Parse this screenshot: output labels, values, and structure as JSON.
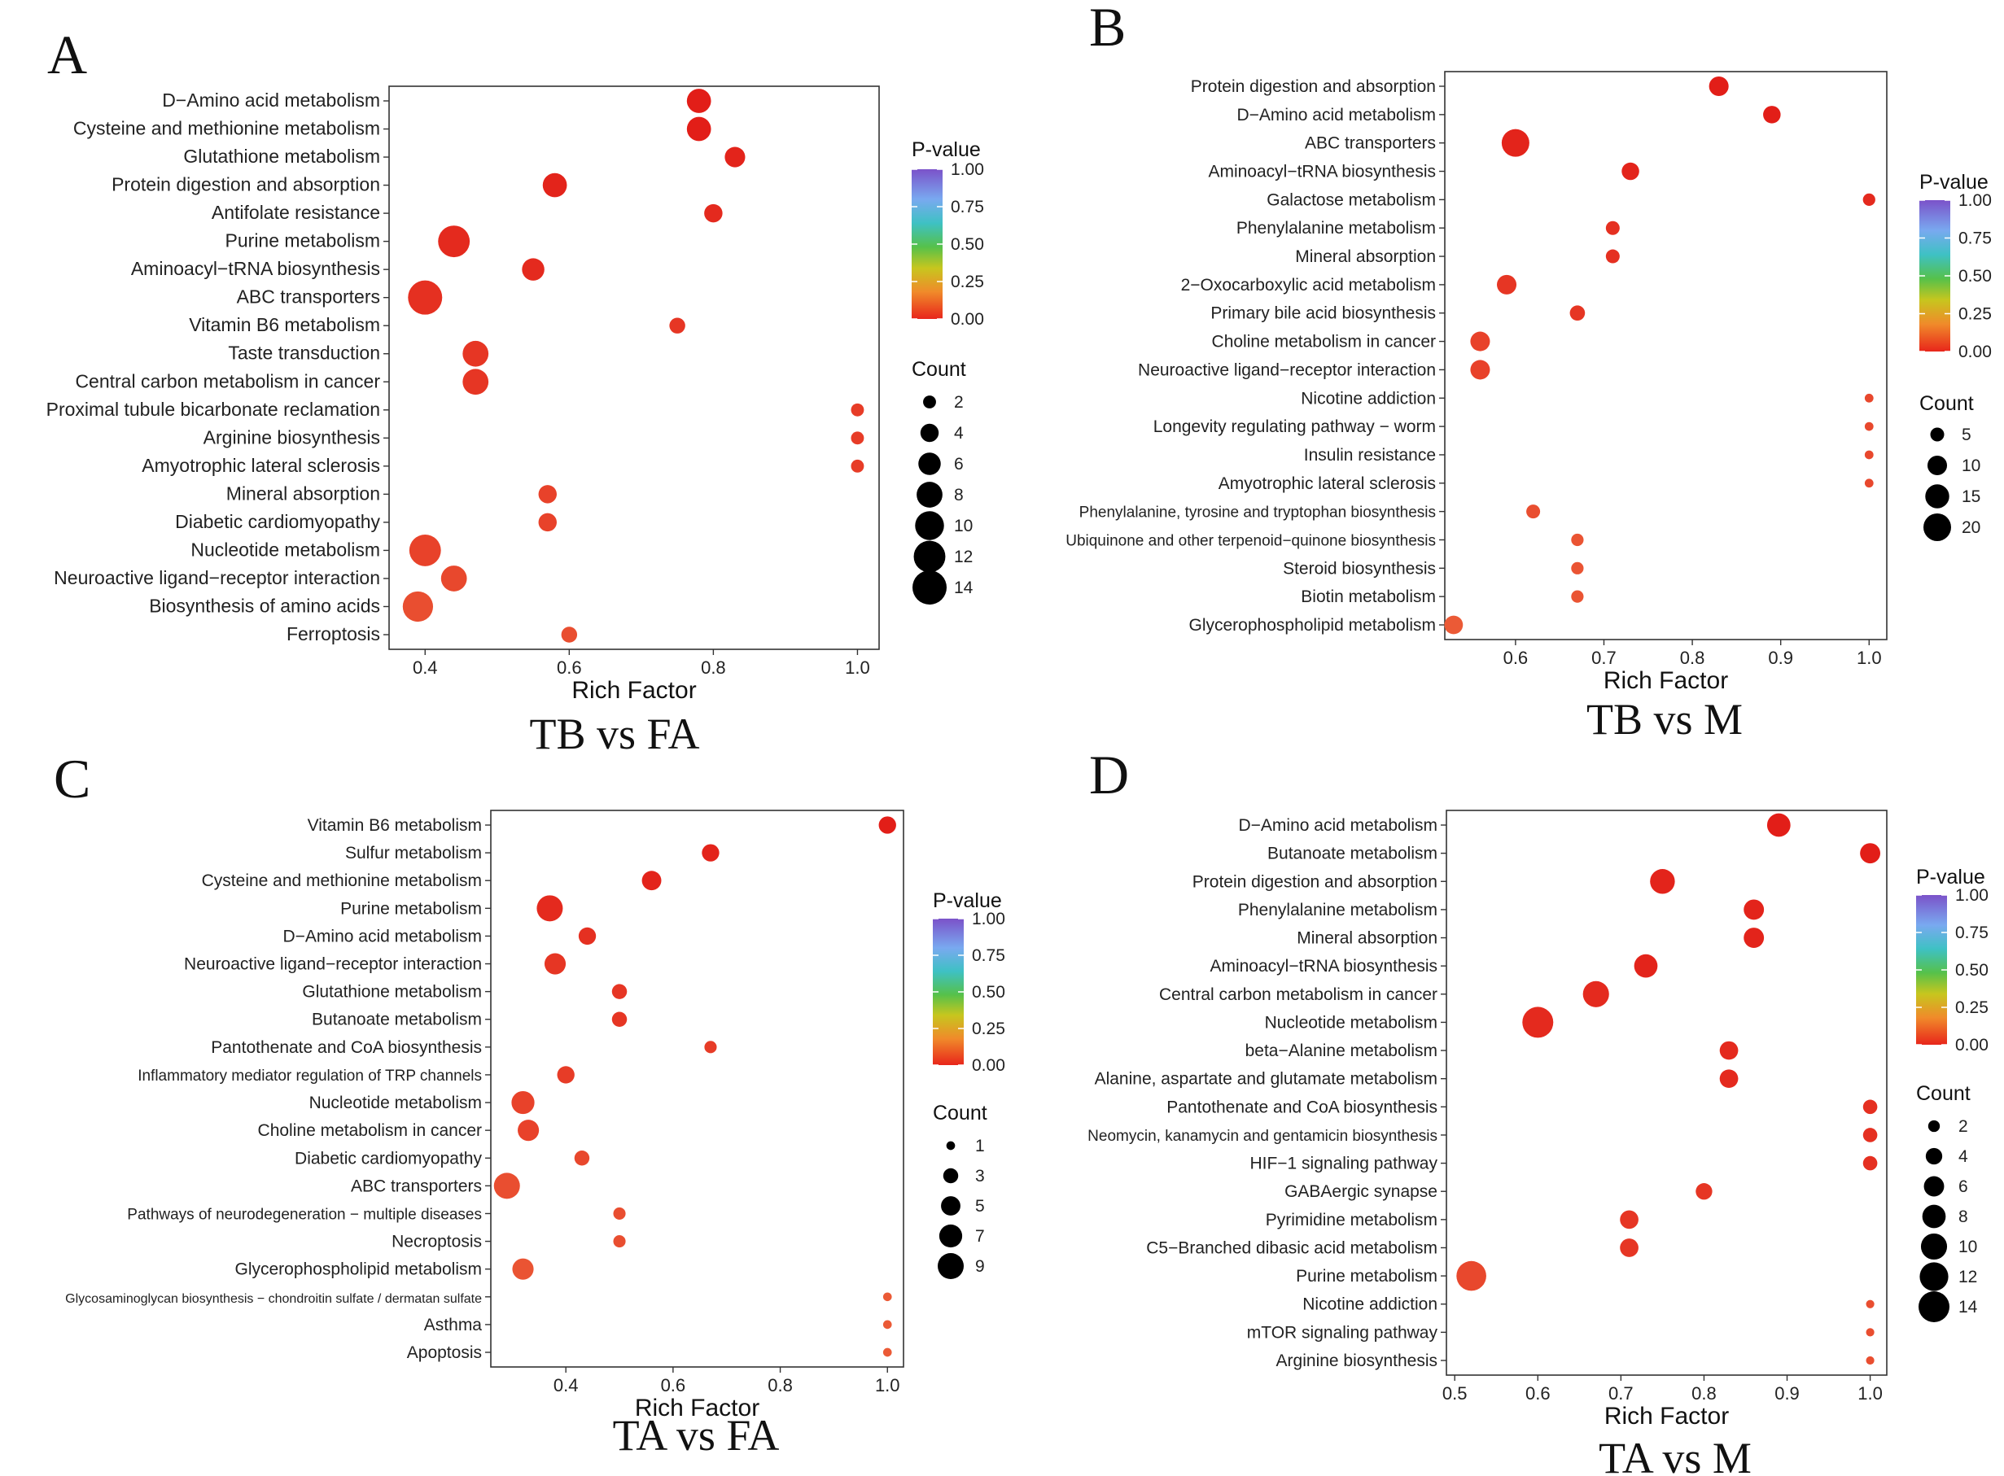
{
  "chart_data": [
    {
      "panel": "A",
      "type": "scatter",
      "subtitle": "TB vs FA",
      "xlabel": "Rich Factor",
      "xlim": [
        0.35,
        1.03
      ],
      "xticks": [
        0.4,
        0.6,
        0.8,
        1.0
      ],
      "xtick_labels": [
        "0.4",
        "0.6",
        "0.8",
        "1.0"
      ],
      "legend": {
        "color_title": "P-value",
        "color_ticks": [
          "1.00",
          "0.75",
          "0.50",
          "0.25",
          "0.00"
        ],
        "size_title": "Count",
        "size_values": [
          2,
          4,
          6,
          8,
          10,
          12,
          14
        ],
        "size_labels": [
          "2",
          "4",
          "6",
          "8",
          "10",
          "12",
          "14"
        ]
      },
      "terms": [
        {
          "name": "D−Amino acid metabolism",
          "rich_factor": 0.78,
          "count": 7,
          "p_value": 0.0
        },
        {
          "name": "Cysteine and methionine metabolism",
          "rich_factor": 0.78,
          "count": 7,
          "p_value": 0.0
        },
        {
          "name": "Glutathione metabolism",
          "rich_factor": 0.83,
          "count": 5,
          "p_value": 0.01
        },
        {
          "name": "Protein digestion and absorption",
          "rich_factor": 0.58,
          "count": 7,
          "p_value": 0.01
        },
        {
          "name": "Antifolate resistance",
          "rich_factor": 0.8,
          "count": 4,
          "p_value": 0.02
        },
        {
          "name": "Purine metabolism",
          "rich_factor": 0.44,
          "count": 12,
          "p_value": 0.02
        },
        {
          "name": "Aminoacyl−tRNA biosynthesis",
          "rich_factor": 0.55,
          "count": 6,
          "p_value": 0.02
        },
        {
          "name": "ABC transporters",
          "rich_factor": 0.4,
          "count": 14,
          "p_value": 0.03
        },
        {
          "name": "Vitamin B6 metabolism",
          "rich_factor": 0.75,
          "count": 3,
          "p_value": 0.04
        },
        {
          "name": "Taste transduction",
          "rich_factor": 0.47,
          "count": 8,
          "p_value": 0.04
        },
        {
          "name": "Central carbon metabolism in cancer",
          "rich_factor": 0.47,
          "count": 8,
          "p_value": 0.04
        },
        {
          "name": "Proximal tubule bicarbonate reclamation",
          "rich_factor": 1.0,
          "count": 2,
          "p_value": 0.05
        },
        {
          "name": "Arginine biosynthesis",
          "rich_factor": 1.0,
          "count": 2,
          "p_value": 0.05
        },
        {
          "name": "Amyotrophic lateral sclerosis",
          "rich_factor": 1.0,
          "count": 2,
          "p_value": 0.05
        },
        {
          "name": "Mineral absorption",
          "rich_factor": 0.57,
          "count": 4,
          "p_value": 0.06
        },
        {
          "name": "Diabetic cardiomyopathy",
          "rich_factor": 0.57,
          "count": 4,
          "p_value": 0.06
        },
        {
          "name": "Nucleotide metabolism",
          "rich_factor": 0.4,
          "count": 12,
          "p_value": 0.06
        },
        {
          "name": "Neuroactive ligand−receptor interaction",
          "rich_factor": 0.44,
          "count": 8,
          "p_value": 0.07
        },
        {
          "name": "Biosynthesis of amino acids",
          "rich_factor": 0.39,
          "count": 11,
          "p_value": 0.08
        },
        {
          "name": "Ferroptosis",
          "rich_factor": 0.6,
          "count": 3,
          "p_value": 0.08
        }
      ]
    },
    {
      "panel": "B",
      "type": "scatter",
      "subtitle": "TB vs M",
      "xlabel": "Rich Factor",
      "xlim": [
        0.52,
        1.02
      ],
      "xticks": [
        0.6,
        0.7,
        0.8,
        0.9,
        1.0
      ],
      "xtick_labels": [
        "0.6",
        "0.7",
        "0.8",
        "0.9",
        "1.0"
      ],
      "legend": {
        "color_title": "P-value",
        "color_ticks": [
          "1.00",
          "0.75",
          "0.50",
          "0.25",
          "0.00"
        ],
        "size_title": "Count",
        "size_values": [
          5,
          10,
          15,
          20
        ],
        "size_labels": [
          "5",
          "10",
          "15",
          "20"
        ]
      },
      "terms": [
        {
          "name": "Protein digestion and absorption",
          "rich_factor": 0.83,
          "count": 10,
          "p_value": 0.0
        },
        {
          "name": "D−Amino acid metabolism",
          "rich_factor": 0.89,
          "count": 8,
          "p_value": 0.0
        },
        {
          "name": "ABC transporters",
          "rich_factor": 0.6,
          "count": 20,
          "p_value": 0.01
        },
        {
          "name": "Aminoacyl−tRNA biosynthesis",
          "rich_factor": 0.73,
          "count": 8,
          "p_value": 0.01
        },
        {
          "name": "Galactose metabolism",
          "rich_factor": 1.0,
          "count": 4,
          "p_value": 0.02
        },
        {
          "name": "Phenylalanine metabolism",
          "rich_factor": 0.71,
          "count": 5,
          "p_value": 0.03
        },
        {
          "name": "Mineral absorption",
          "rich_factor": 0.71,
          "count": 5,
          "p_value": 0.03
        },
        {
          "name": "2−Oxocarboxylic acid metabolism",
          "rich_factor": 0.59,
          "count": 10,
          "p_value": 0.04
        },
        {
          "name": "Primary bile acid biosynthesis",
          "rich_factor": 0.67,
          "count": 6,
          "p_value": 0.04
        },
        {
          "name": "Choline metabolism in cancer",
          "rich_factor": 0.56,
          "count": 10,
          "p_value": 0.06
        },
        {
          "name": "Neuroactive ligand−receptor interaction",
          "rich_factor": 0.56,
          "count": 10,
          "p_value": 0.06
        },
        {
          "name": "Nicotine addiction",
          "rich_factor": 1.0,
          "count": 2,
          "p_value": 0.07
        },
        {
          "name": "Longevity regulating pathway − worm",
          "rich_factor": 1.0,
          "count": 2,
          "p_value": 0.07
        },
        {
          "name": "Insulin resistance",
          "rich_factor": 1.0,
          "count": 2,
          "p_value": 0.07
        },
        {
          "name": "Amyotrophic lateral sclerosis",
          "rich_factor": 1.0,
          "count": 2,
          "p_value": 0.07
        },
        {
          "name": "Phenylalanine, tyrosine and tryptophan biosynthesis",
          "rich_factor": 0.62,
          "count": 5,
          "p_value": 0.08
        },
        {
          "name": "Ubiquinone and other terpenoid−quinone biosynthesis",
          "rich_factor": 0.67,
          "count": 4,
          "p_value": 0.09
        },
        {
          "name": "Steroid biosynthesis",
          "rich_factor": 0.67,
          "count": 4,
          "p_value": 0.09
        },
        {
          "name": "Biotin metabolism",
          "rich_factor": 0.67,
          "count": 4,
          "p_value": 0.09
        },
        {
          "name": "Glycerophospholipid metabolism",
          "rich_factor": 0.53,
          "count": 9,
          "p_value": 0.1
        }
      ]
    },
    {
      "panel": "C",
      "type": "scatter",
      "subtitle": "TA vs FA",
      "xlabel": "Rich Factor",
      "xlim": [
        0.26,
        1.03
      ],
      "xticks": [
        0.4,
        0.6,
        0.8,
        1.0
      ],
      "xtick_labels": [
        "0.4",
        "0.6",
        "0.8",
        "1.0"
      ],
      "legend": {
        "color_title": "P-value",
        "color_ticks": [
          "1.00",
          "0.75",
          "0.50",
          "0.25",
          "0.00"
        ],
        "size_title": "Count",
        "size_values": [
          1,
          3,
          5,
          7,
          9
        ],
        "size_labels": [
          "1",
          "3",
          "5",
          "7",
          "9"
        ]
      },
      "terms": [
        {
          "name": "Vitamin B6 metabolism",
          "rich_factor": 1.0,
          "count": 4,
          "p_value": 0.0
        },
        {
          "name": "Sulfur metabolism",
          "rich_factor": 0.67,
          "count": 4,
          "p_value": 0.01
        },
        {
          "name": "Cysteine and methionine metabolism",
          "rich_factor": 0.56,
          "count": 5,
          "p_value": 0.01
        },
        {
          "name": "Purine metabolism",
          "rich_factor": 0.37,
          "count": 9,
          "p_value": 0.02
        },
        {
          "name": "D−Amino acid metabolism",
          "rich_factor": 0.44,
          "count": 4,
          "p_value": 0.03
        },
        {
          "name": "Neuroactive ligand−receptor interaction",
          "rich_factor": 0.38,
          "count": 6,
          "p_value": 0.04
        },
        {
          "name": "Glutathione metabolism",
          "rich_factor": 0.5,
          "count": 3,
          "p_value": 0.04
        },
        {
          "name": "Butanoate metabolism",
          "rich_factor": 0.5,
          "count": 3,
          "p_value": 0.04
        },
        {
          "name": "Pantothenate and CoA biosynthesis",
          "rich_factor": 0.67,
          "count": 2,
          "p_value": 0.05
        },
        {
          "name": "Inflammatory mediator regulation of TRP channels",
          "rich_factor": 0.4,
          "count": 4,
          "p_value": 0.05
        },
        {
          "name": "Nucleotide metabolism",
          "rich_factor": 0.32,
          "count": 7,
          "p_value": 0.06
        },
        {
          "name": "Choline metabolism in cancer",
          "rich_factor": 0.33,
          "count": 6,
          "p_value": 0.06
        },
        {
          "name": "Diabetic cardiomyopathy",
          "rich_factor": 0.43,
          "count": 3,
          "p_value": 0.07
        },
        {
          "name": "ABC transporters",
          "rich_factor": 0.29,
          "count": 9,
          "p_value": 0.08
        },
        {
          "name": "Pathways of neurodegeneration − multiple diseases",
          "rich_factor": 0.5,
          "count": 2,
          "p_value": 0.08
        },
        {
          "name": "Necroptosis",
          "rich_factor": 0.5,
          "count": 2,
          "p_value": 0.08
        },
        {
          "name": "Glycerophospholipid metabolism",
          "rich_factor": 0.32,
          "count": 6,
          "p_value": 0.09
        },
        {
          "name": "Glycosaminoglycan biosynthesis − chondroitin sulfate / dermatan sulfate",
          "rich_factor": 1.0,
          "count": 1,
          "p_value": 0.1
        },
        {
          "name": "Asthma",
          "rich_factor": 1.0,
          "count": 1,
          "p_value": 0.1
        },
        {
          "name": "Apoptosis",
          "rich_factor": 1.0,
          "count": 1,
          "p_value": 0.1
        }
      ]
    },
    {
      "panel": "D",
      "type": "scatter",
      "subtitle": "TA vs M",
      "xlabel": "Rich Factor",
      "xlim": [
        0.49,
        1.02
      ],
      "xticks": [
        0.5,
        0.6,
        0.7,
        0.8,
        0.9,
        1.0
      ],
      "xtick_labels": [
        "0.5",
        "0.6",
        "0.7",
        "0.8",
        "0.9",
        "1.0"
      ],
      "legend": {
        "color_title": "P-value",
        "color_ticks": [
          "1.00",
          "0.75",
          "0.50",
          "0.25",
          "0.00"
        ],
        "size_title": "Count",
        "size_values": [
          2,
          4,
          6,
          8,
          10,
          12,
          14
        ],
        "size_labels": [
          "2",
          "4",
          "6",
          "8",
          "10",
          "12",
          "14"
        ]
      },
      "terms": [
        {
          "name": "D−Amino acid metabolism",
          "rich_factor": 0.89,
          "count": 8,
          "p_value": 0.0
        },
        {
          "name": "Butanoate metabolism",
          "rich_factor": 1.0,
          "count": 6,
          "p_value": 0.0
        },
        {
          "name": "Protein digestion and absorption",
          "rich_factor": 0.75,
          "count": 9,
          "p_value": 0.01
        },
        {
          "name": "Phenylalanine metabolism",
          "rich_factor": 0.86,
          "count": 6,
          "p_value": 0.01
        },
        {
          "name": "Mineral absorption",
          "rich_factor": 0.86,
          "count": 6,
          "p_value": 0.01
        },
        {
          "name": "Aminoacyl−tRNA biosynthesis",
          "rich_factor": 0.73,
          "count": 8,
          "p_value": 0.01
        },
        {
          "name": "Central carbon metabolism in cancer",
          "rich_factor": 0.67,
          "count": 10,
          "p_value": 0.02
        },
        {
          "name": "Nucleotide metabolism",
          "rich_factor": 0.6,
          "count": 14,
          "p_value": 0.02
        },
        {
          "name": "beta−Alanine metabolism",
          "rich_factor": 0.83,
          "count": 5,
          "p_value": 0.02
        },
        {
          "name": "Alanine, aspartate and glutamate metabolism",
          "rich_factor": 0.83,
          "count": 5,
          "p_value": 0.02
        },
        {
          "name": "Pantothenate and CoA biosynthesis",
          "rich_factor": 1.0,
          "count": 3,
          "p_value": 0.03
        },
        {
          "name": "Neomycin, kanamycin and gentamicin biosynthesis",
          "rich_factor": 1.0,
          "count": 3,
          "p_value": 0.03
        },
        {
          "name": "HIF−1 signaling pathway",
          "rich_factor": 1.0,
          "count": 3,
          "p_value": 0.03
        },
        {
          "name": "GABAergic synapse",
          "rich_factor": 0.8,
          "count": 4,
          "p_value": 0.04
        },
        {
          "name": "Pyrimidine metabolism",
          "rich_factor": 0.71,
          "count": 5,
          "p_value": 0.04
        },
        {
          "name": "C5−Branched dibasic acid metabolism",
          "rich_factor": 0.71,
          "count": 5,
          "p_value": 0.04
        },
        {
          "name": "Purine metabolism",
          "rich_factor": 0.52,
          "count": 13,
          "p_value": 0.07
        },
        {
          "name": "Nicotine addiction",
          "rich_factor": 1.0,
          "count": 1,
          "p_value": 0.08
        },
        {
          "name": "mTOR signaling pathway",
          "rich_factor": 1.0,
          "count": 1,
          "p_value": 0.08
        },
        {
          "name": "Arginine biosynthesis",
          "rich_factor": 1.0,
          "count": 1,
          "p_value": 0.08
        }
      ]
    }
  ]
}
